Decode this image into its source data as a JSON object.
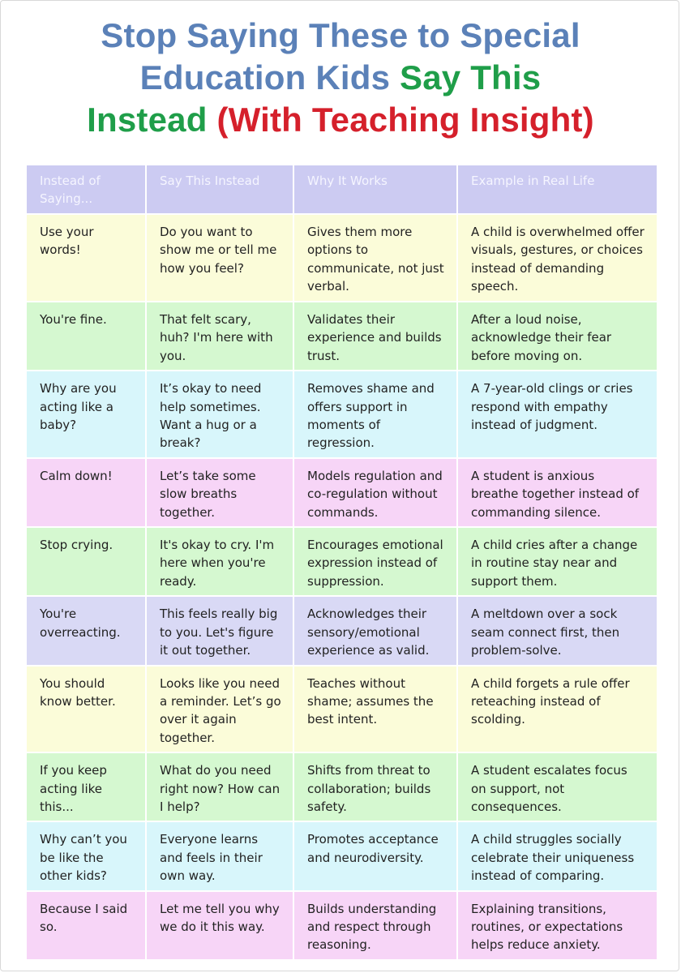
{
  "title": {
    "line1": "Stop Saying These to Special",
    "line2_a": "Education Kids ",
    "line2_b": "Say This",
    "line3_a": "Instead ",
    "line3_b": "(With Teaching Insight)"
  },
  "colors": {
    "title_blue": "#5b81b8",
    "title_green": "#1f9e49",
    "title_red": "#d5202b",
    "header_bg": "#cccbf2",
    "row_yellow": "#fbfcd9",
    "row_green": "#d5f8d0",
    "row_cyan": "#d8f6fb",
    "row_pink": "#f7d5f7",
    "row_purple": "#d9d9f5"
  },
  "table": {
    "headers": [
      "Instead of Saying...",
      "Say This Instead",
      "Why It Works",
      "Example in Real Life"
    ],
    "rows": [
      {
        "color": "yellow",
        "cells": [
          "Use your words!",
          "Do you want to show me or tell me how you feel?",
          "Gives them more options to communicate, not just verbal.",
          "A child is overwhelmed offer visuals, gestures, or choices instead of demanding speech."
        ]
      },
      {
        "color": "green",
        "cells": [
          "You're fine.",
          "That felt scary, huh? I'm here with you.",
          "Validates their experience and builds trust.",
          "After a loud noise, acknowledge their fear before moving on."
        ]
      },
      {
        "color": "cyan",
        "cells": [
          "Why are you acting like a baby?",
          "It’s okay to need help sometimes. Want a hug or a break?",
          "Removes shame and offers support in moments of regression.",
          "A 7-year-old clings or cries respond with empathy instead of judgment."
        ]
      },
      {
        "color": "pink",
        "cells": [
          "Calm down!",
          "Let’s take some slow breaths together.",
          "Models regulation and co-regulation without commands.",
          "A student is anxious breathe together instead of commanding silence."
        ]
      },
      {
        "color": "green",
        "cells": [
          "Stop crying.",
          "It's okay to cry. I'm here when you're ready.",
          "Encourages emotional expression instead of suppression.",
          "A child cries after a change in routine stay near and support them."
        ]
      },
      {
        "color": "purple",
        "cells": [
          "You're overreacting.",
          "This feels really big to you. Let's figure it out together.",
          "Acknowledges their sensory/emotional experience as valid.",
          "A meltdown over a sock seam connect first, then problem-solve."
        ]
      },
      {
        "color": "yellow",
        "cells": [
          "You should know better.",
          "Looks like you need a reminder. Let’s go over it again together.",
          "Teaches without shame; assumes the best intent.",
          "A child forgets a rule offer reteaching instead of scolding."
        ]
      },
      {
        "color": "green",
        "cells": [
          "If you keep acting like this...",
          "What do you need right now? How can I help?",
          "Shifts from threat to collaboration; builds safety.",
          "A student escalates focus on support, not consequences."
        ]
      },
      {
        "color": "cyan",
        "cells": [
          "Why can’t you be like the other kids?",
          "Everyone learns and feels in their own way.",
          "Promotes acceptance and neurodiversity.",
          "A child struggles socially celebrate their uniqueness instead of comparing."
        ]
      },
      {
        "color": "pink",
        "cells": [
          "Because I said so.",
          "Let me tell you why we do it this way.",
          "Builds understanding and respect through reasoning.",
          "Explaining transitions, routines, or expectations helps reduce anxiety."
        ]
      }
    ]
  }
}
